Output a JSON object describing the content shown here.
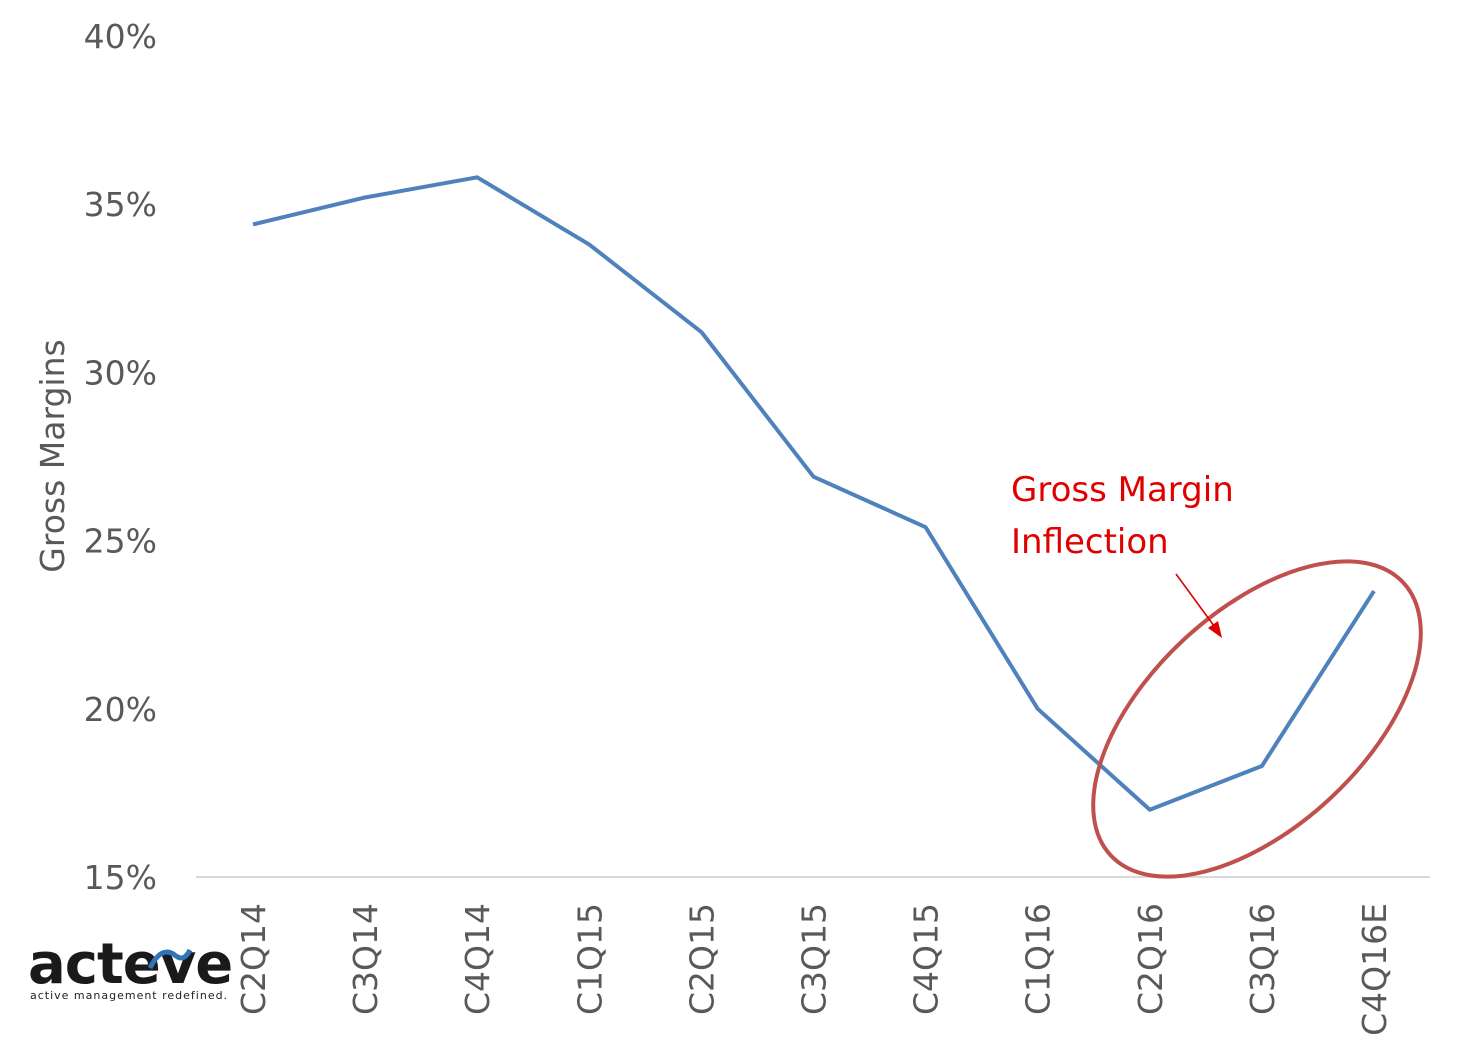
{
  "chart_data": {
    "type": "line",
    "ylabel": "Gross Margins",
    "ylim": [
      15,
      40
    ],
    "yticks": [
      15,
      20,
      25,
      30,
      35,
      40
    ],
    "ytick_labels": [
      "15%",
      "20%",
      "25%",
      "30%",
      "35%",
      "40%"
    ],
    "categories": [
      "C2Q14",
      "C3Q14",
      "C4Q14",
      "C1Q15",
      "C2Q15",
      "C3Q15",
      "C4Q15",
      "C1Q16",
      "C2Q16",
      "C3Q16",
      "C4Q16E"
    ],
    "series": [
      {
        "values": [
          34.4,
          35.2,
          35.8,
          33.8,
          31.2,
          26.9,
          25.4,
          20.0,
          17.0,
          18.3,
          23.5
        ]
      }
    ],
    "annotation": {
      "lines": [
        "Gross Margin",
        "Inflection"
      ]
    },
    "colors": {
      "line": "#4f81bd",
      "annotation_text": "#e00000",
      "ellipse": "#c0504d",
      "arrow": "#e00000"
    }
  },
  "logo": {
    "text": "acteve",
    "tagline": "active management redefined."
  }
}
